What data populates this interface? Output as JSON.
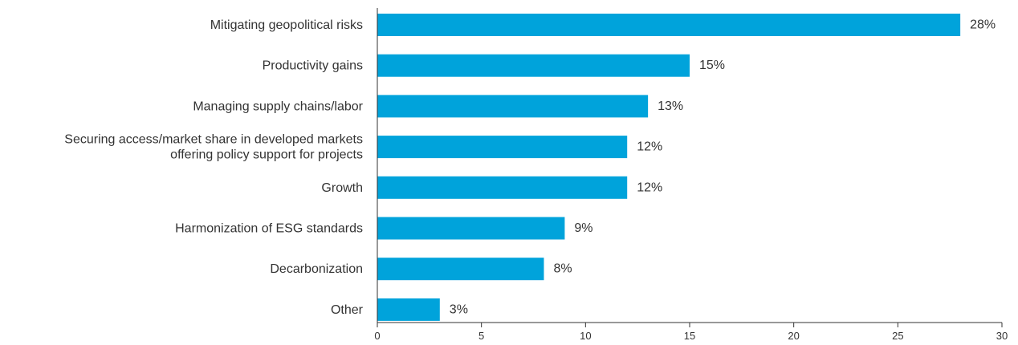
{
  "chart_data": {
    "type": "bar",
    "orientation": "horizontal",
    "title": "",
    "xlabel": "",
    "ylabel": "",
    "categories": [
      [
        "Mitigating geopolitical risks"
      ],
      [
        "Productivity gains"
      ],
      [
        "Managing supply chains/labor"
      ],
      [
        "Securing access/market share in developed markets",
        "offering policy support for projects"
      ],
      [
        "Growth"
      ],
      [
        "Harmonization of ESG standards"
      ],
      [
        "Decarbonization"
      ],
      [
        "Other"
      ]
    ],
    "values": [
      28,
      15,
      13,
      12,
      12,
      9,
      8,
      3
    ],
    "value_labels": [
      "28%",
      "15%",
      "13%",
      "12%",
      "12%",
      "9%",
      "8%",
      "3%"
    ],
    "xlim": [
      0,
      30
    ],
    "xticks": [
      0,
      5,
      10,
      15,
      20,
      25,
      30
    ],
    "xtick_labels": [
      "0",
      "5",
      "10",
      "15",
      "20",
      "25",
      "30"
    ],
    "grid": false,
    "legend": "none",
    "bar_color": "#00A3DB",
    "axis_color": "#333333",
    "text_color": "#333333"
  }
}
